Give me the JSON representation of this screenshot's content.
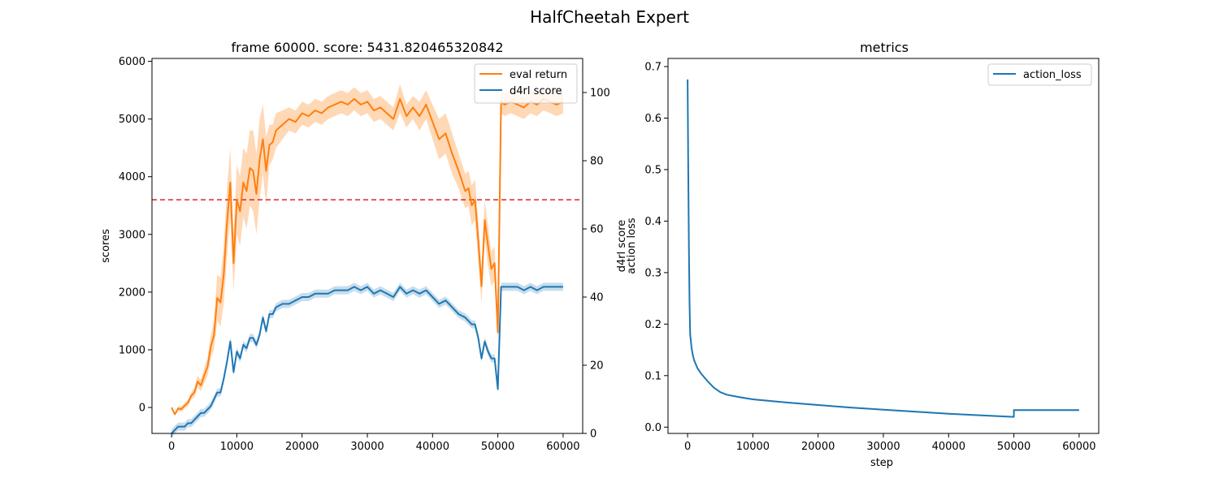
{
  "figure": {
    "title": "HalfCheetah Expert"
  },
  "chart_data": [
    {
      "type": "line",
      "title": "frame 60000. score: 5431.820465320842",
      "ylabel": "scores",
      "y2label": "d4rl score",
      "xlim": [
        -3000,
        63000
      ],
      "ylim": [
        -450,
        6050
      ],
      "y2lim": [
        0,
        110
      ],
      "xticks": [
        0,
        10000,
        20000,
        30000,
        40000,
        50000,
        60000
      ],
      "yticks": [
        0,
        1000,
        2000,
        3000,
        4000,
        5000,
        6000
      ],
      "y2ticks": [
        0,
        20,
        40,
        60,
        80,
        100
      ],
      "reference_line": {
        "y": 3600,
        "style": "dashed",
        "color": "#d62728"
      },
      "legend": "upper right",
      "series": [
        {
          "name": "eval return",
          "color": "#ff7f0e",
          "axis": "left",
          "x": [
            0,
            500,
            1000,
            1500,
            2000,
            2500,
            3000,
            3500,
            4000,
            4500,
            5000,
            5500,
            6000,
            6500,
            7000,
            7500,
            8000,
            8500,
            9000,
            9500,
            10000,
            10500,
            11000,
            11500,
            12000,
            12500,
            13000,
            13500,
            14000,
            14500,
            15000,
            15500,
            16000,
            17000,
            18000,
            19000,
            20000,
            21000,
            22000,
            23000,
            24000,
            25000,
            26000,
            27000,
            28000,
            29000,
            30000,
            31000,
            32000,
            33000,
            34000,
            35000,
            36000,
            37000,
            38000,
            39000,
            40000,
            41000,
            42000,
            43000,
            44000,
            45000,
            45500,
            46000,
            46500,
            47000,
            47500,
            48000,
            48500,
            49000,
            49500,
            50000,
            50500,
            51000,
            52000,
            53000,
            54000,
            55000,
            56000,
            57000,
            58000,
            59000,
            60000
          ],
          "y": [
            0,
            -120,
            -20,
            -30,
            30,
            80,
            200,
            260,
            450,
            380,
            550,
            700,
            1050,
            1250,
            1900,
            1820,
            2300,
            3200,
            3900,
            2500,
            3600,
            3400,
            3900,
            3750,
            4150,
            4100,
            3700,
            4300,
            4650,
            4100,
            4550,
            4600,
            4800,
            4900,
            5000,
            4950,
            5100,
            5050,
            5150,
            5100,
            5200,
            5250,
            5300,
            5250,
            5350,
            5250,
            5300,
            5150,
            5200,
            5100,
            5000,
            5350,
            5050,
            5200,
            5050,
            5250,
            4950,
            4650,
            4750,
            4400,
            4100,
            3750,
            3800,
            3500,
            3600,
            2900,
            2100,
            3250,
            2800,
            2400,
            2500,
            1300,
            5300,
            5250,
            5300,
            5250,
            5200,
            5300,
            5250,
            5350,
            5300,
            5250,
            5300
          ],
          "y_low": [
            0,
            -120,
            -60,
            -80,
            -20,
            20,
            140,
            180,
            350,
            280,
            420,
            540,
            850,
            1000,
            1500,
            1400,
            1800,
            2600,
            3300,
            2000,
            3000,
            2800,
            3300,
            3100,
            3500,
            3400,
            3000,
            3600,
            4050,
            3500,
            4200,
            4300,
            4500,
            4650,
            4800,
            4750,
            4900,
            4850,
            4950,
            4900,
            5000,
            5050,
            5100,
            5050,
            5150,
            5050,
            5100,
            4950,
            5000,
            4900,
            4800,
            5100,
            4850,
            5000,
            4800,
            5000,
            4650,
            4300,
            4400,
            4050,
            3800,
            3450,
            3500,
            3150,
            3250,
            2550,
            1800,
            2900,
            2450,
            2100,
            2200,
            1150,
            5100,
            5050,
            5100,
            5050,
            5000,
            5100,
            5050,
            5150,
            5100,
            5050,
            5100
          ],
          "y_high": [
            0,
            -120,
            20,
            20,
            80,
            140,
            260,
            340,
            550,
            480,
            680,
            860,
            1250,
            1500,
            2300,
            2250,
            2800,
            3800,
            4500,
            3000,
            4200,
            4000,
            4500,
            4400,
            4800,
            4800,
            4400,
            5000,
            5250,
            4700,
            4900,
            4900,
            5100,
            5150,
            5200,
            5150,
            5300,
            5250,
            5350,
            5300,
            5400,
            5450,
            5500,
            5450,
            5550,
            5450,
            5500,
            5350,
            5400,
            5300,
            5200,
            5600,
            5250,
            5400,
            5300,
            5500,
            5250,
            5000,
            5100,
            4750,
            4400,
            4050,
            4100,
            3850,
            3950,
            3250,
            2400,
            3600,
            3150,
            2700,
            2800,
            1450,
            5500,
            5450,
            5500,
            5450,
            5400,
            5500,
            5450,
            5550,
            5500,
            5450,
            5500
          ]
        },
        {
          "name": "d4rl score",
          "color": "#1f77b4",
          "axis": "right",
          "x": [
            0,
            500,
            1000,
            1500,
            2000,
            2500,
            3000,
            3500,
            4000,
            4500,
            5000,
            5500,
            6000,
            6500,
            7000,
            7500,
            8000,
            8500,
            9000,
            9500,
            10000,
            10500,
            11000,
            11500,
            12000,
            12500,
            13000,
            13500,
            14000,
            14500,
            15000,
            15500,
            16000,
            17000,
            18000,
            19000,
            20000,
            21000,
            22000,
            23000,
            24000,
            25000,
            26000,
            27000,
            28000,
            29000,
            30000,
            31000,
            32000,
            33000,
            34000,
            35000,
            36000,
            37000,
            38000,
            39000,
            40000,
            41000,
            42000,
            43000,
            44000,
            45000,
            45500,
            46000,
            46500,
            47000,
            47500,
            48000,
            48500,
            49000,
            49500,
            50000,
            50500,
            51000,
            52000,
            53000,
            54000,
            55000,
            56000,
            57000,
            58000,
            59000,
            60000
          ],
          "y": [
            0,
            1,
            2,
            2,
            2,
            3,
            3,
            4,
            5,
            6,
            6,
            7,
            8,
            10,
            12,
            12,
            16,
            21,
            27,
            18,
            24,
            22,
            26,
            25,
            28,
            28,
            26,
            29,
            34,
            30,
            35,
            35,
            37,
            38,
            38,
            39,
            40,
            40,
            41,
            41,
            41,
            42,
            42,
            42,
            43,
            42,
            43,
            41,
            42,
            41,
            40,
            43,
            41,
            42,
            41,
            42,
            40,
            38,
            39,
            37,
            35,
            34,
            33,
            32,
            32,
            28,
            22,
            27,
            24,
            22,
            22,
            13,
            43,
            43,
            43,
            43,
            42,
            43,
            42,
            43,
            43,
            43,
            43
          ]
        }
      ]
    },
    {
      "type": "line",
      "title": "metrics",
      "xlabel": "step",
      "ylabel": "d4rl score\naction loss",
      "ylabel_lines": [
        "d4rl score",
        "action loss"
      ],
      "xlim": [
        -3000,
        63000
      ],
      "ylim": [
        -0.0122,
        0.7158
      ],
      "xticks": [
        0,
        10000,
        20000,
        30000,
        40000,
        50000,
        60000
      ],
      "yticks": [
        0.0,
        0.1,
        0.2,
        0.3,
        0.4,
        0.5,
        0.6,
        0.7
      ],
      "legend": "upper right",
      "series": [
        {
          "name": "action_loss",
          "color": "#1f77b4",
          "x": [
            0,
            100,
            200,
            300,
            400,
            600,
            800,
            1000,
            1500,
            2000,
            3000,
            4000,
            5000,
            6000,
            8000,
            10000,
            15000,
            20000,
            25000,
            30000,
            35000,
            40000,
            45000,
            50000,
            50001,
            55000,
            60000
          ],
          "y": [
            0.675,
            0.5,
            0.35,
            0.24,
            0.18,
            0.155,
            0.14,
            0.13,
            0.115,
            0.105,
            0.09,
            0.077,
            0.068,
            0.063,
            0.058,
            0.054,
            0.048,
            0.043,
            0.038,
            0.034,
            0.03,
            0.026,
            0.023,
            0.02,
            0.033,
            0.033,
            0.033
          ]
        }
      ]
    }
  ]
}
